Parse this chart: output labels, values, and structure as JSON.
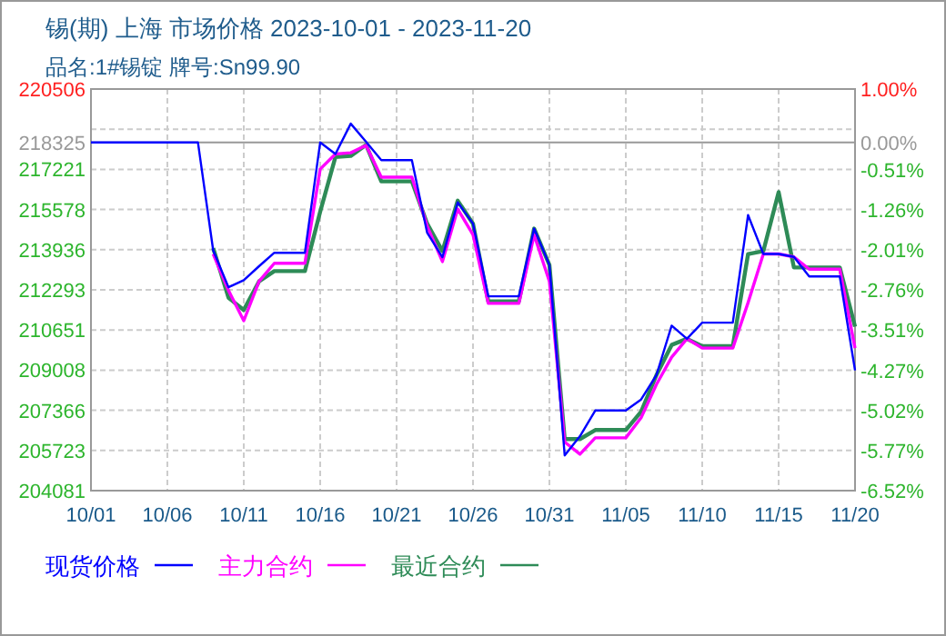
{
  "chart_data": {
    "type": "line",
    "title": "锡(期) 上海 市场价格 2023-10-01 - 2023-11-20",
    "subtitle": "品名:1#锡锭 牌号:Sn99.90",
    "xlim": [
      "2023-10-01",
      "2023-11-20"
    ],
    "xticks": [
      {
        "value": "2023-10-01",
        "label": "10/01"
      },
      {
        "value": "2023-10-06",
        "label": "10/06"
      },
      {
        "value": "2023-10-11",
        "label": "10/11"
      },
      {
        "value": "2023-10-16",
        "label": "10/16"
      },
      {
        "value": "2023-10-21",
        "label": "10/21"
      },
      {
        "value": "2023-10-26",
        "label": "10/26"
      },
      {
        "value": "2023-10-31",
        "label": "10/31"
      },
      {
        "value": "2023-11-05",
        "label": "11/05"
      },
      {
        "value": "2023-11-10",
        "label": "11/10"
      },
      {
        "value": "2023-11-15",
        "label": "11/15"
      },
      {
        "value": "2023-11-20",
        "label": "11/20"
      }
    ],
    "ylim": [
      204081,
      220506
    ],
    "yticks": [
      204081,
      205723,
      207366,
      209008,
      210651,
      212293,
      213936,
      215578,
      217221,
      {
        "value": 218863,
        "label": null
      },
      220506
    ],
    "y2lim": [
      -6.52,
      1.0
    ],
    "y2ticks": [
      {
        "value": -6.52,
        "label": "-6.52%"
      },
      {
        "value": -5.77,
        "label": "-5.77%"
      },
      {
        "value": -5.02,
        "label": "-5.02%"
      },
      {
        "value": -4.27,
        "label": "-4.27%"
      },
      {
        "value": -3.51,
        "label": "-3.51%"
      },
      {
        "value": -2.76,
        "label": "-2.76%"
      },
      {
        "value": -2.01,
        "label": "-2.01%"
      },
      {
        "value": -1.26,
        "label": "-1.26%"
      },
      {
        "value": -0.51,
        "label": "-0.51%"
      },
      {
        "value": 0,
        "label": "0.00%"
      },
      {
        "value": 1.0,
        "label": "1.00%"
      }
    ],
    "ref_lines": [
      {
        "axis": "y",
        "value": 218325,
        "label": "218325",
        "color": "#999999"
      }
    ],
    "grid": true,
    "legend": "bottom",
    "line_style": "solid",
    "marker": "none",
    "series": [
      {
        "name": "现货价格",
        "color": "#0000ff",
        "x": [
          "2023-10-01",
          "2023-10-08",
          "2023-10-09",
          "2023-10-10",
          "2023-10-11",
          "2023-10-12",
          "2023-10-13",
          "2023-10-15",
          "2023-10-16",
          "2023-10-17",
          "2023-10-18",
          "2023-10-19",
          "2023-10-20",
          "2023-10-22",
          "2023-10-23",
          "2023-10-24",
          "2023-10-25",
          "2023-10-26",
          "2023-10-27",
          "2023-10-29",
          "2023-10-30",
          "2023-10-31",
          "2023-11-01",
          "2023-11-02",
          "2023-11-03",
          "2023-11-05",
          "2023-11-06",
          "2023-11-07",
          "2023-11-08",
          "2023-11-09",
          "2023-11-10",
          "2023-11-12",
          "2023-11-13",
          "2023-11-14",
          "2023-11-15",
          "2023-11-16",
          "2023-11-17",
          "2023-11-19",
          "2023-11-20"
        ],
        "values": [
          218325,
          218325,
          213900,
          212400,
          212690,
          213260,
          213810,
          213810,
          218320,
          217850,
          219090,
          218350,
          217600,
          217600,
          214630,
          213630,
          215870,
          215000,
          212030,
          212030,
          214800,
          213310,
          205520,
          206310,
          207360,
          207360,
          207810,
          208800,
          210830,
          210290,
          210950,
          210950,
          215350,
          213760,
          213760,
          213640,
          212840,
          212840,
          209000
        ]
      },
      {
        "name": "主力合约",
        "color": "#ff00ff",
        "x": [
          "2023-10-09",
          "2023-10-10",
          "2023-10-11",
          "2023-10-12",
          "2023-10-13",
          "2023-10-15",
          "2023-10-16",
          "2023-10-17",
          "2023-10-18",
          "2023-10-19",
          "2023-10-20",
          "2023-10-22",
          "2023-10-23",
          "2023-10-24",
          "2023-10-25",
          "2023-10-26",
          "2023-10-27",
          "2023-10-29",
          "2023-10-30",
          "2023-10-31",
          "2023-11-01",
          "2023-11-02",
          "2023-11-03",
          "2023-11-05",
          "2023-11-06",
          "2023-11-07",
          "2023-11-08",
          "2023-11-09",
          "2023-11-10",
          "2023-11-12",
          "2023-11-13",
          "2023-11-14",
          "2023-11-15",
          "2023-11-16",
          "2023-11-17",
          "2023-11-19",
          "2023-11-20"
        ],
        "values": [
          213760,
          212270,
          211030,
          212640,
          213380,
          213380,
          217230,
          217850,
          217900,
          218200,
          216900,
          216900,
          214900,
          213450,
          215600,
          214550,
          211740,
          211740,
          214540,
          212640,
          206070,
          205570,
          206240,
          206240,
          207060,
          208420,
          209540,
          210290,
          209910,
          209910,
          211770,
          213760,
          213760,
          213640,
          213140,
          213140,
          209910
        ]
      },
      {
        "name": "最近合约",
        "color": "#2e8b57",
        "x": [
          "2023-10-09",
          "2023-10-10",
          "2023-10-11",
          "2023-10-12",
          "2023-10-13",
          "2023-10-15",
          "2023-10-16",
          "2023-10-17",
          "2023-10-18",
          "2023-10-19",
          "2023-10-20",
          "2023-10-22",
          "2023-10-23",
          "2023-10-24",
          "2023-10-25",
          "2023-10-26",
          "2023-10-27",
          "2023-10-29",
          "2023-10-30",
          "2023-10-31",
          "2023-11-01",
          "2023-11-02",
          "2023-11-03",
          "2023-11-05",
          "2023-11-06",
          "2023-11-07",
          "2023-11-08",
          "2023-11-09",
          "2023-11-10",
          "2023-11-12",
          "2023-11-13",
          "2023-11-14",
          "2023-11-15",
          "2023-11-16",
          "2023-11-17",
          "2023-11-19",
          "2023-11-20"
        ],
        "values": [
          214000,
          211970,
          211470,
          212640,
          213060,
          213060,
          215490,
          217730,
          217770,
          218220,
          216730,
          216730,
          215000,
          213880,
          215940,
          215000,
          211820,
          211820,
          214800,
          213310,
          206190,
          206190,
          206560,
          206560,
          207310,
          208800,
          210040,
          210290,
          209990,
          209990,
          213760,
          213880,
          216290,
          213210,
          213210,
          213210,
          210790
        ]
      }
    ]
  }
}
